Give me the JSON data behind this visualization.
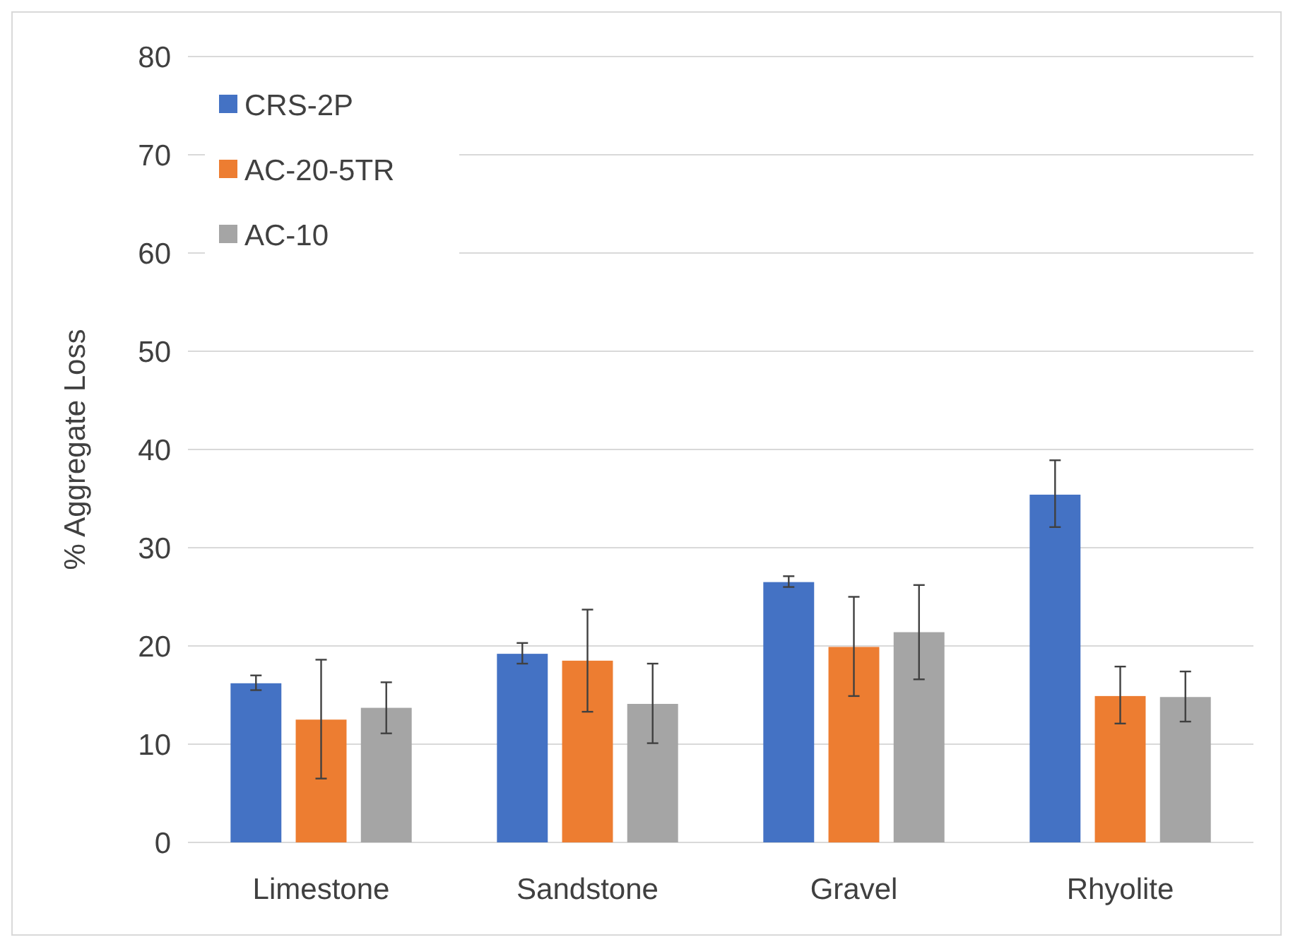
{
  "chart_data": {
    "type": "bar",
    "ylabel": "% Aggregate Loss",
    "categories": [
      "Limestone",
      "Sandstone",
      "Gravel",
      "Rhyolite"
    ],
    "series": [
      {
        "name": "CRS-2P",
        "color": "#4472c4",
        "values": [
          16.2,
          19.2,
          26.5,
          35.4
        ],
        "errors": [
          [
            15.5,
            17.0
          ],
          [
            18.2,
            20.3
          ],
          [
            26.0,
            27.1
          ],
          [
            32.1,
            38.9
          ]
        ]
      },
      {
        "name": "AC-20-5TR",
        "color": "#ed7d31",
        "values": [
          12.5,
          18.5,
          19.9,
          14.9
        ],
        "errors": [
          [
            6.5,
            18.6
          ],
          [
            13.3,
            23.7
          ],
          [
            14.9,
            25.0
          ],
          [
            12.1,
            17.9
          ]
        ]
      },
      {
        "name": "AC-10",
        "color": "#a5a5a5",
        "values": [
          13.7,
          14.1,
          21.4,
          14.8
        ],
        "errors": [
          [
            11.1,
            16.3
          ],
          [
            10.1,
            18.2
          ],
          [
            16.6,
            26.2
          ],
          [
            12.3,
            17.4
          ]
        ]
      }
    ],
    "ylim": [
      0,
      80
    ],
    "yticks": [
      0,
      10,
      20,
      30,
      40,
      50,
      60,
      70,
      80
    ],
    "grid": "y",
    "legend": "top left"
  }
}
